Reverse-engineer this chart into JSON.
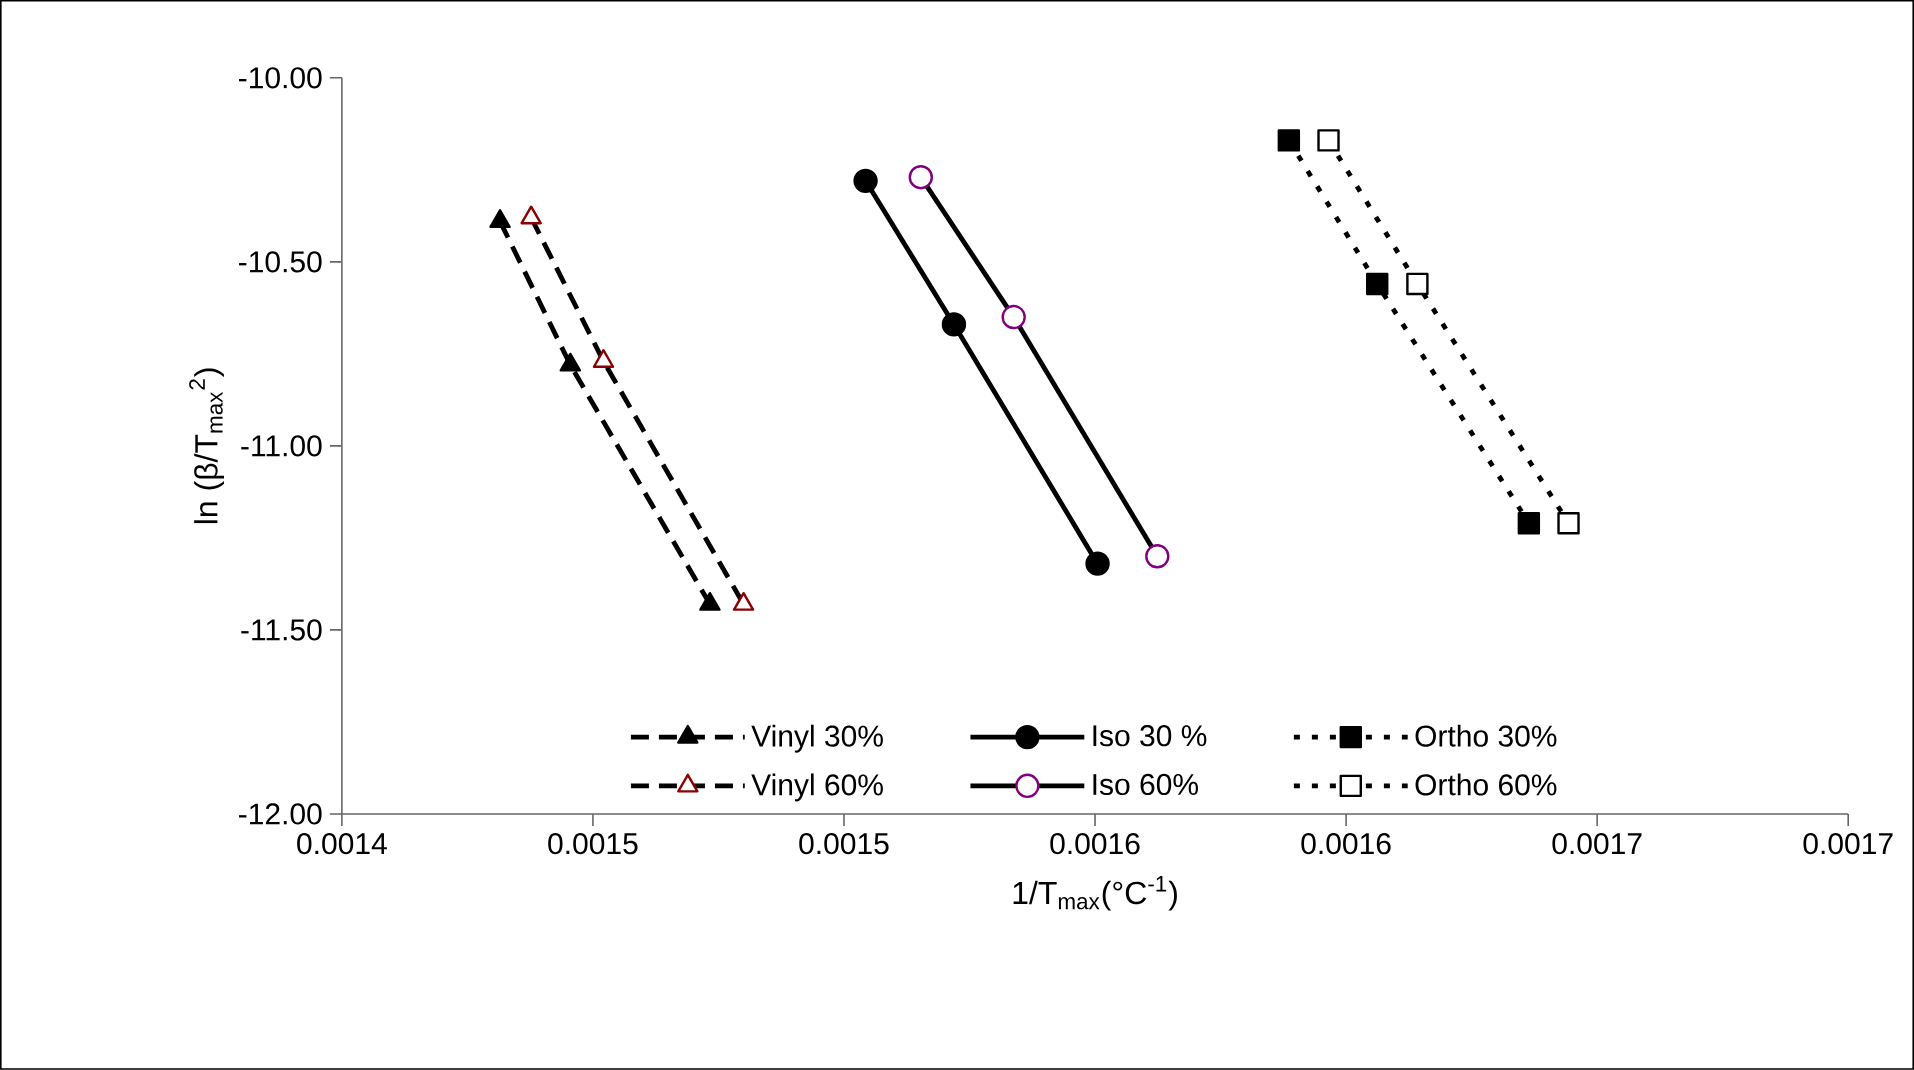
{
  "chart_data": {
    "type": "line",
    "xlabel": "1/T$_{max}$(°C$^{-1}$)",
    "ylabel": "ln (β/T$_{max}$$^{2}$)",
    "xlim": [
      0.0014,
      0.0017
    ],
    "ylim": [
      -12,
      -10
    ],
    "xticks": [
      {
        "value": 0.0014,
        "label": "0.0014"
      },
      {
        "value": 0.00145,
        "label": "0.0015"
      },
      {
        "value": 0.0015,
        "label": "0.0015"
      },
      {
        "value": 0.00155,
        "label": "0.0016"
      },
      {
        "value": 0.0016,
        "label": "0.0016"
      },
      {
        "value": 0.00165,
        "label": "0.0017"
      },
      {
        "value": 0.0017,
        "label": "0.0017"
      }
    ],
    "yticks": [
      {
        "value": -10,
        "label": "-10.00"
      },
      {
        "value": -10.5,
        "label": "-10.50"
      },
      {
        "value": -11,
        "label": "-11.00"
      },
      {
        "value": -11.5,
        "label": "-11.50"
      },
      {
        "value": -12,
        "label": "-12.00"
      }
    ],
    "grid": false,
    "legend": "bottom",
    "series": [
      {
        "name": "Vinyl 30%",
        "color": "#000000",
        "marker": "triangle",
        "line_style": "dashed",
        "x": [
          0.0014315,
          0.0014455,
          0.0014733
        ],
        "values": [
          -10.39,
          -10.78,
          -11.43
        ]
      },
      {
        "name": "Iso 30 %",
        "color": "#000000",
        "marker": "circle",
        "line_style": "solid",
        "x": [
          0.0015043,
          0.0015219,
          0.0015505
        ],
        "values": [
          -10.28,
          -10.67,
          -11.32
        ]
      },
      {
        "name": "Ortho 30%",
        "color": "#000000",
        "marker": "square",
        "line_style": "dotted",
        "x": [
          0.0015886,
          0.0016062,
          0.0016364
        ],
        "values": [
          -10.17,
          -10.56,
          -11.21
        ]
      },
      {
        "name": "Vinyl 60%",
        "color": "#8b0000",
        "marker": "triangle",
        "line_style": "dashed",
        "x": [
          0.0014377,
          0.0014521,
          0.00148
        ],
        "values": [
          -10.38,
          -10.77,
          -11.43
        ]
      },
      {
        "name": "Iso 60%",
        "color": "#800080",
        "marker": "circle",
        "line_style": "solid",
        "x": [
          0.0015153,
          0.0015338,
          0.0015624
        ],
        "values": [
          -10.27,
          -10.65,
          -11.3
        ]
      },
      {
        "name": "Ortho 60%",
        "color": "#ffffff",
        "marker": "square",
        "line_style": "dotted",
        "x": [
          0.0015965,
          0.0016142,
          0.0016443
        ],
        "values": [
          -10.17,
          -10.56,
          -11.21
        ]
      }
    ]
  }
}
